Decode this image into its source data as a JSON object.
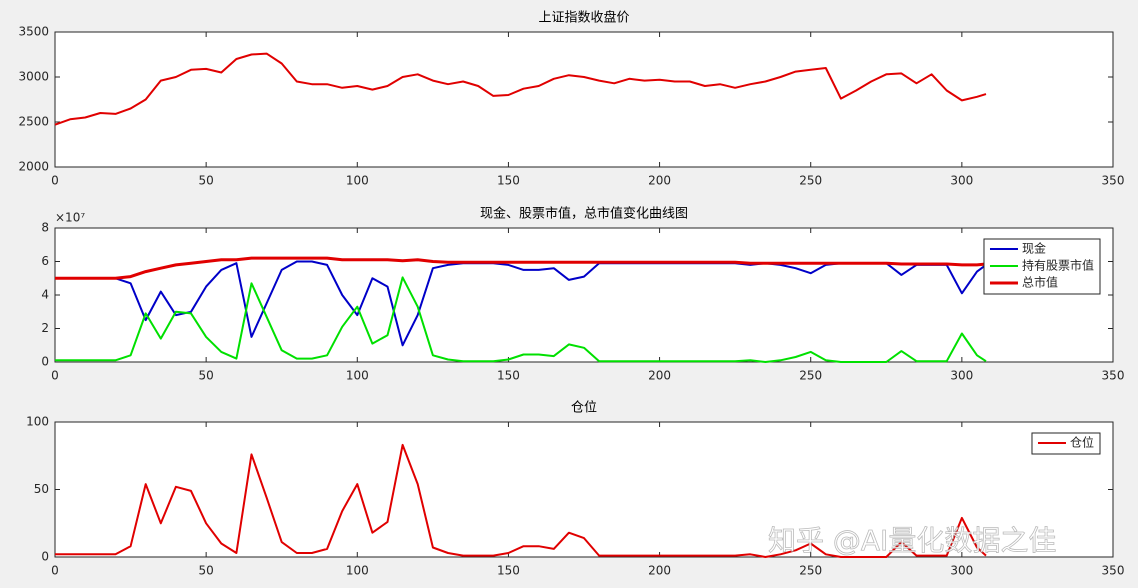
{
  "watermark": "知乎 @AI量化数据之佳",
  "chart_data": [
    {
      "type": "line",
      "title": "上证指数收盘价",
      "x": [
        0,
        5,
        10,
        15,
        20,
        25,
        30,
        35,
        40,
        45,
        50,
        55,
        60,
        65,
        70,
        75,
        80,
        85,
        90,
        95,
        100,
        105,
        110,
        115,
        120,
        125,
        130,
        135,
        140,
        145,
        150,
        155,
        160,
        165,
        170,
        175,
        180,
        185,
        190,
        195,
        200,
        205,
        210,
        215,
        220,
        225,
        230,
        235,
        240,
        245,
        250,
        255,
        260,
        265,
        270,
        275,
        280,
        285,
        290,
        295,
        300,
        305,
        308
      ],
      "series": [
        {
          "name": null,
          "color": "#e00000",
          "line_width": 2,
          "values": [
            2470,
            2530,
            2550,
            2600,
            2590,
            2650,
            2750,
            2960,
            3000,
            3080,
            3090,
            3050,
            3200,
            3250,
            3260,
            3150,
            2950,
            2920,
            2920,
            2880,
            2900,
            2860,
            2900,
            3000,
            3030,
            2960,
            2920,
            2950,
            2900,
            2790,
            2800,
            2870,
            2900,
            2980,
            3020,
            3000,
            2960,
            2930,
            2980,
            2960,
            2970,
            2950,
            2950,
            2900,
            2920,
            2880,
            2920,
            2950,
            3000,
            3060,
            3080,
            3100,
            2760,
            2850,
            2950,
            3030,
            3040,
            2930,
            3030,
            2850,
            2740,
            2780,
            2810
          ]
        }
      ],
      "xlim": [
        0,
        350
      ],
      "xticks": [
        0,
        50,
        100,
        150,
        200,
        250,
        300,
        350
      ],
      "ylim": [
        2000,
        3500
      ],
      "yticks": [
        2000,
        2500,
        3000,
        3500
      ]
    },
    {
      "type": "line",
      "title": "现金、股票市值，总市值变化曲线图",
      "y_multiplier": "×10⁷",
      "x": [
        0,
        5,
        10,
        15,
        20,
        25,
        30,
        35,
        40,
        45,
        50,
        55,
        60,
        65,
        70,
        75,
        80,
        85,
        90,
        95,
        100,
        105,
        110,
        115,
        120,
        125,
        130,
        135,
        140,
        145,
        150,
        155,
        160,
        165,
        170,
        175,
        180,
        185,
        190,
        195,
        200,
        205,
        210,
        215,
        220,
        225,
        230,
        235,
        240,
        245,
        250,
        255,
        260,
        265,
        270,
        275,
        280,
        285,
        290,
        295,
        300,
        305,
        308
      ],
      "series": [
        {
          "name": "现金",
          "color": "#0000c8",
          "line_width": 2,
          "values": [
            5,
            5,
            5,
            5,
            5,
            4.7,
            2.5,
            4.2,
            2.8,
            3,
            4.5,
            5.5,
            5.9,
            1.5,
            3.5,
            5.5,
            6,
            6,
            5.8,
            4,
            2.8,
            5,
            4.5,
            1,
            2.8,
            5.6,
            5.8,
            5.9,
            5.9,
            5.9,
            5.8,
            5.5,
            5.5,
            5.6,
            4.9,
            5.1,
            5.9,
            5.9,
            5.9,
            5.9,
            5.9,
            5.9,
            5.9,
            5.9,
            5.9,
            5.9,
            5.8,
            5.9,
            5.8,
            5.6,
            5.3,
            5.8,
            5.9,
            5.9,
            5.9,
            5.9,
            5.2,
            5.8,
            5.8,
            5.8,
            4.1,
            5.4,
            5.8
          ]
        },
        {
          "name": "持有股票市值",
          "color": "#00e000",
          "line_width": 2,
          "values": [
            0.1,
            0.1,
            0.1,
            0.1,
            0.1,
            0.4,
            2.9,
            1.4,
            3,
            2.9,
            1.5,
            0.6,
            0.2,
            4.7,
            2.7,
            0.7,
            0.2,
            0.2,
            0.4,
            2.1,
            3.3,
            1.1,
            1.6,
            5.05,
            3.3,
            0.4,
            0.15,
            0.05,
            0.05,
            0.05,
            0.15,
            0.45,
            0.45,
            0.35,
            1.05,
            0.85,
            0.05,
            0.05,
            0.05,
            0.05,
            0.05,
            0.05,
            0.05,
            0.05,
            0.05,
            0.05,
            0.1,
            0,
            0.1,
            0.3,
            0.6,
            0.1,
            0,
            0,
            0,
            0,
            0.65,
            0.05,
            0.05,
            0.05,
            1.7,
            0.4,
            0.05
          ]
        },
        {
          "name": "总市值",
          "color": "#e00000",
          "line_width": 3,
          "values": [
            5,
            5,
            5,
            5,
            5,
            5.1,
            5.4,
            5.6,
            5.8,
            5.9,
            6,
            6.1,
            6.1,
            6.2,
            6.2,
            6.2,
            6.2,
            6.2,
            6.2,
            6.1,
            6.1,
            6.1,
            6.1,
            6.05,
            6.1,
            6,
            5.95,
            5.95,
            5.95,
            5.95,
            5.95,
            5.95,
            5.95,
            5.95,
            5.95,
            5.95,
            5.95,
            5.95,
            5.95,
            5.95,
            5.95,
            5.95,
            5.95,
            5.95,
            5.95,
            5.95,
            5.9,
            5.9,
            5.9,
            5.9,
            5.9,
            5.9,
            5.9,
            5.9,
            5.9,
            5.9,
            5.85,
            5.85,
            5.85,
            5.85,
            5.8,
            5.8,
            5.85
          ]
        }
      ],
      "xlim": [
        0,
        350
      ],
      "xticks": [
        0,
        50,
        100,
        150,
        200,
        250,
        300,
        350
      ],
      "ylim": [
        0,
        8
      ],
      "yticks": [
        0,
        2,
        4,
        6,
        8
      ],
      "legend": "northeast"
    },
    {
      "type": "line",
      "title": "仓位",
      "x": [
        0,
        5,
        10,
        15,
        20,
        25,
        30,
        35,
        40,
        45,
        50,
        55,
        60,
        65,
        70,
        75,
        80,
        85,
        90,
        95,
        100,
        105,
        110,
        115,
        120,
        125,
        130,
        135,
        140,
        145,
        150,
        155,
        160,
        165,
        170,
        175,
        180,
        185,
        190,
        195,
        200,
        205,
        210,
        215,
        220,
        225,
        230,
        235,
        240,
        245,
        250,
        255,
        260,
        265,
        270,
        275,
        280,
        285,
        290,
        295,
        300,
        305,
        308
      ],
      "series": [
        {
          "name": "仓位",
          "color": "#e00000",
          "line_width": 2,
          "values": [
            2,
            2,
            2,
            2,
            2,
            8,
            54,
            25,
            52,
            49,
            25,
            10,
            3,
            76,
            44,
            11,
            3,
            3,
            6,
            34,
            54,
            18,
            26,
            83,
            54,
            7,
            3,
            1,
            1,
            1,
            3,
            8,
            8,
            6,
            18,
            14,
            1,
            1,
            1,
            1,
            1,
            1,
            1,
            1,
            1,
            1,
            2,
            0,
            2,
            5,
            10,
            2,
            0,
            0,
            0,
            0,
            11,
            1,
            1,
            1,
            29,
            7,
            1
          ]
        }
      ],
      "xlim": [
        0,
        350
      ],
      "xticks": [
        0,
        50,
        100,
        150,
        200,
        250,
        300,
        350
      ],
      "ylim": [
        0,
        100
      ],
      "yticks": [
        0,
        50,
        100
      ],
      "legend": "northeast"
    }
  ]
}
